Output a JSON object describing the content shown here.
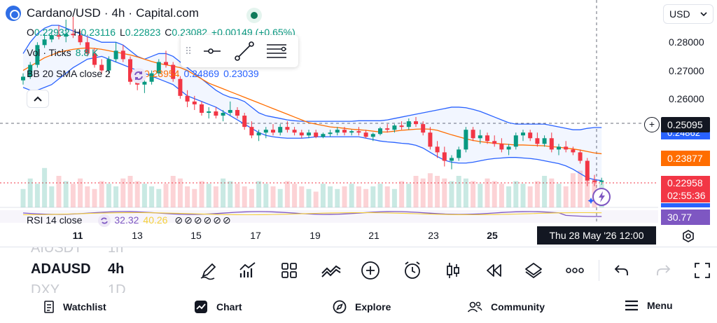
{
  "symbol": {
    "name": "Cardano/USD",
    "interval": "4h",
    "exchange": "Capital.com",
    "separator": "·"
  },
  "ohlc": {
    "o_label": "O",
    "o": "0.22932",
    "h_label": "H",
    "h": "0.23116",
    "l_label": "L",
    "l": "0.22823",
    "c_label": "C",
    "c": "0.23082",
    "change": "+0.00149 (+0.65%)"
  },
  "volume": {
    "label": "Vol · Ticks",
    "value": "8.8 K"
  },
  "bollinger": {
    "label": "BB 20 SMA close 2",
    "basis": "0.23954",
    "upper": "0.24869",
    "lower": "0.23039"
  },
  "rsi": {
    "label": "RSI 14 close",
    "value1": "32.32",
    "value2": "40.26"
  },
  "currency": {
    "selected": "USD"
  },
  "price_axis": {
    "ticks": [
      "0.28000",
      "0.27000",
      "0.26000"
    ],
    "crosshair_price": "0.25095",
    "bb_upper_tag": "0.24862",
    "bb_basis_tag": "0.23877",
    "last_price": "0.22958",
    "countdown": "02:55:36",
    "rsi_tag": "30.77"
  },
  "time_axis": {
    "labels": [
      {
        "text": "11",
        "bold": true
      },
      {
        "text": "13",
        "bold": false
      },
      {
        "text": "15",
        "bold": false
      },
      {
        "text": "17",
        "bold": false
      },
      {
        "text": "19",
        "bold": false
      },
      {
        "text": "21",
        "bold": false
      },
      {
        "text": "23",
        "bold": false
      },
      {
        "text": "25",
        "bold": true
      }
    ],
    "crosshair_time": "Thu 28 May '26   12:00"
  },
  "symbol_picker": {
    "prev": {
      "symbol": "AIUSDT",
      "interval": "1h"
    },
    "current": {
      "symbol": "ADAUSD",
      "interval": "4h"
    },
    "next": {
      "symbol": "DXY",
      "interval": "1D"
    }
  },
  "toolbar_icons": [
    "brush-icon",
    "indicators-icon",
    "templates-icon",
    "compare-icon",
    "add-icon",
    "alert-clock-icon",
    "candles-icon",
    "replay-icon",
    "layers-icon",
    "more-icon",
    "undo-icon",
    "redo-icon",
    "fullscreen-icon"
  ],
  "bottom_nav": {
    "watchlist": "Watchlist",
    "chart": "Chart",
    "explore": "Explore",
    "community": "Community",
    "menu": "Menu"
  },
  "colors": {
    "up": "#089981",
    "down": "#f23645",
    "bb_basis": "#ff6d00",
    "bb_band": "#2962ff",
    "rsi": "#7e57c2",
    "accent_dark": "#131722"
  },
  "chart_data": {
    "type": "candlestick",
    "price_range": [
      0.2195,
      0.2895
    ],
    "candles": [
      [
        0.2655,
        0.268,
        0.264,
        0.2668
      ],
      [
        0.2668,
        0.272,
        0.266,
        0.271
      ],
      [
        0.271,
        0.279,
        0.27,
        0.278
      ],
      [
        0.278,
        0.282,
        0.277,
        0.28
      ],
      [
        0.28,
        0.283,
        0.279,
        0.2815
      ],
      [
        0.2815,
        0.285,
        0.28,
        0.281
      ],
      [
        0.281,
        0.287,
        0.279,
        0.282
      ],
      [
        0.282,
        0.288,
        0.2805,
        0.2815
      ],
      [
        0.2815,
        0.283,
        0.278,
        0.279
      ],
      [
        0.279,
        0.281,
        0.274,
        0.275
      ],
      [
        0.275,
        0.277,
        0.27,
        0.271
      ],
      [
        0.271,
        0.273,
        0.268,
        0.269
      ],
      [
        0.269,
        0.274,
        0.268,
        0.273
      ],
      [
        0.273,
        0.279,
        0.272,
        0.276
      ],
      [
        0.276,
        0.278,
        0.272,
        0.273
      ],
      [
        0.273,
        0.274,
        0.264,
        0.265
      ],
      [
        0.265,
        0.267,
        0.262,
        0.264
      ],
      [
        0.264,
        0.266,
        0.261,
        0.265
      ],
      [
        0.265,
        0.269,
        0.264,
        0.268
      ],
      [
        0.268,
        0.273,
        0.267,
        0.272
      ],
      [
        0.272,
        0.276,
        0.27,
        0.271
      ],
      [
        0.271,
        0.272,
        0.265,
        0.266
      ],
      [
        0.266,
        0.267,
        0.259,
        0.26
      ],
      [
        0.26,
        0.262,
        0.256,
        0.258
      ],
      [
        0.258,
        0.26,
        0.255,
        0.257
      ],
      [
        0.257,
        0.258,
        0.253,
        0.254
      ],
      [
        0.254,
        0.256,
        0.252,
        0.2545
      ],
      [
        0.2545,
        0.256,
        0.252,
        0.253
      ],
      [
        0.253,
        0.255,
        0.251,
        0.254
      ],
      [
        0.254,
        0.258,
        0.253,
        0.255
      ],
      [
        0.255,
        0.256,
        0.252,
        0.253
      ],
      [
        0.253,
        0.254,
        0.248,
        0.249
      ],
      [
        0.249,
        0.251,
        0.245,
        0.246
      ],
      [
        0.246,
        0.248,
        0.244,
        0.247
      ],
      [
        0.247,
        0.249,
        0.245,
        0.248
      ],
      [
        0.248,
        0.25,
        0.246,
        0.247
      ],
      [
        0.247,
        0.25,
        0.246,
        0.249
      ],
      [
        0.249,
        0.251,
        0.247,
        0.248
      ],
      [
        0.248,
        0.249,
        0.246,
        0.247
      ],
      [
        0.247,
        0.248,
        0.245,
        0.246
      ],
      [
        0.246,
        0.248,
        0.245,
        0.247
      ],
      [
        0.247,
        0.248,
        0.245,
        0.2455
      ],
      [
        0.2455,
        0.247,
        0.245,
        0.2465
      ],
      [
        0.2465,
        0.248,
        0.2455,
        0.247
      ],
      [
        0.247,
        0.249,
        0.246,
        0.248
      ],
      [
        0.248,
        0.249,
        0.246,
        0.247
      ],
      [
        0.247,
        0.248,
        0.246,
        0.2475
      ],
      [
        0.2475,
        0.249,
        0.246,
        0.247
      ],
      [
        0.247,
        0.248,
        0.245,
        0.2455
      ],
      [
        0.2455,
        0.247,
        0.244,
        0.2465
      ],
      [
        0.2465,
        0.249,
        0.246,
        0.2485
      ],
      [
        0.2485,
        0.25,
        0.247,
        0.248
      ],
      [
        0.248,
        0.25,
        0.247,
        0.2495
      ],
      [
        0.2495,
        0.251,
        0.248,
        0.249
      ],
      [
        0.249,
        0.252,
        0.248,
        0.251
      ],
      [
        0.251,
        0.2525,
        0.249,
        0.25
      ],
      [
        0.25,
        0.251,
        0.246,
        0.247
      ],
      [
        0.247,
        0.249,
        0.241,
        0.242
      ],
      [
        0.242,
        0.244,
        0.238,
        0.24
      ],
      [
        0.24,
        0.242,
        0.235,
        0.237
      ],
      [
        0.237,
        0.239,
        0.234,
        0.238
      ],
      [
        0.238,
        0.242,
        0.237,
        0.241
      ],
      [
        0.241,
        0.249,
        0.24,
        0.248
      ],
      [
        0.248,
        0.249,
        0.244,
        0.245
      ],
      [
        0.245,
        0.248,
        0.243,
        0.246
      ],
      [
        0.246,
        0.247,
        0.243,
        0.244
      ],
      [
        0.244,
        0.246,
        0.242,
        0.243
      ],
      [
        0.243,
        0.245,
        0.24,
        0.241
      ],
      [
        0.241,
        0.243,
        0.239,
        0.242
      ],
      [
        0.242,
        0.247,
        0.241,
        0.246
      ],
      [
        0.246,
        0.248,
        0.244,
        0.247
      ],
      [
        0.247,
        0.248,
        0.244,
        0.245
      ],
      [
        0.245,
        0.247,
        0.242,
        0.243
      ],
      [
        0.243,
        0.246,
        0.242,
        0.245
      ],
      [
        0.245,
        0.247,
        0.24,
        0.241
      ],
      [
        0.241,
        0.243,
        0.239,
        0.242
      ],
      [
        0.242,
        0.244,
        0.24,
        0.241
      ],
      [
        0.241,
        0.242,
        0.239,
        0.24
      ],
      [
        0.24,
        0.241,
        0.236,
        0.237
      ],
      [
        0.237,
        0.238,
        0.228,
        0.23
      ],
      [
        0.23,
        0.232,
        0.228,
        0.2295
      ],
      [
        0.2295,
        0.231,
        0.2285,
        0.23
      ]
    ],
    "bb_upper": [
      0.275,
      0.279,
      0.282,
      0.284,
      0.285,
      0.285,
      0.284,
      0.283,
      0.282,
      0.281,
      0.28,
      0.279,
      0.279,
      0.279,
      0.278,
      0.276,
      0.274,
      0.273,
      0.274,
      0.275,
      0.275,
      0.274,
      0.272,
      0.27,
      0.268,
      0.266,
      0.264,
      0.262,
      0.2605,
      0.2595,
      0.259,
      0.258,
      0.256,
      0.254,
      0.253,
      0.2525,
      0.252,
      0.2515,
      0.2512,
      0.251,
      0.251,
      0.251,
      0.251,
      0.251,
      0.251,
      0.251,
      0.251,
      0.2512,
      0.2512,
      0.2512,
      0.2512,
      0.2515,
      0.252,
      0.2525,
      0.253,
      0.2535,
      0.254,
      0.2545,
      0.255,
      0.2555,
      0.256,
      0.256,
      0.2558,
      0.2552,
      0.2545,
      0.2535,
      0.2525,
      0.2515,
      0.2505,
      0.25,
      0.25,
      0.25,
      0.25,
      0.25,
      0.2495,
      0.249,
      0.2485,
      0.248,
      0.248,
      0.2485,
      0.2488,
      0.2488
    ],
    "bb_basis": [
      0.269,
      0.2705,
      0.272,
      0.2735,
      0.2745,
      0.2755,
      0.276,
      0.2765,
      0.2768,
      0.277,
      0.2768,
      0.2765,
      0.276,
      0.2755,
      0.275,
      0.2745,
      0.2738,
      0.273,
      0.2722,
      0.2715,
      0.271,
      0.2705,
      0.27,
      0.269,
      0.2675,
      0.266,
      0.2645,
      0.2635,
      0.2625,
      0.2615,
      0.2605,
      0.2595,
      0.2585,
      0.2575,
      0.2565,
      0.2555,
      0.2545,
      0.2535,
      0.2525,
      0.2515,
      0.2505,
      0.25,
      0.2495,
      0.249,
      0.2488,
      0.2485,
      0.2482,
      0.248,
      0.2478,
      0.2475,
      0.2472,
      0.2472,
      0.2475,
      0.2478,
      0.248,
      0.2482,
      0.2483,
      0.2482,
      0.2478,
      0.247,
      0.2462,
      0.2455,
      0.2448,
      0.2442,
      0.2438,
      0.2435,
      0.2432,
      0.243,
      0.2428,
      0.2426,
      0.2426,
      0.2425,
      0.2424,
      0.2423,
      0.242,
      0.2418,
      0.2415,
      0.2412,
      0.2408,
      0.2403,
      0.2398,
      0.2395
    ],
    "bb_lower": [
      0.263,
      0.262,
      0.262,
      0.263,
      0.264,
      0.266,
      0.268,
      0.27,
      0.2715,
      0.273,
      0.2735,
      0.274,
      0.273,
      0.272,
      0.271,
      0.27,
      0.269,
      0.268,
      0.267,
      0.266,
      0.265,
      0.264,
      0.262,
      0.26,
      0.259,
      0.258,
      0.257,
      0.256,
      0.2545,
      0.253,
      0.2515,
      0.25,
      0.2485,
      0.247,
      0.246,
      0.2455,
      0.2452,
      0.245,
      0.245,
      0.245,
      0.2452,
      0.2455,
      0.2455,
      0.2455,
      0.2455,
      0.2455,
      0.2455,
      0.2455,
      0.245,
      0.2445,
      0.244,
      0.2437,
      0.2435,
      0.2432,
      0.243,
      0.2425,
      0.2415,
      0.24,
      0.2385,
      0.2372,
      0.2365,
      0.2362,
      0.2362,
      0.2365,
      0.237,
      0.2375,
      0.2378,
      0.238,
      0.2382,
      0.2382,
      0.238,
      0.2378,
      0.2375,
      0.237,
      0.2365,
      0.236,
      0.2352,
      0.234,
      0.2325,
      0.231,
      0.2303,
      0.23
    ],
    "volume": [
      0.35,
      0.55,
      0.45,
      0.75,
      0.4,
      0.6,
      0.5,
      0.45,
      0.55,
      0.4,
      0.35,
      0.5,
      0.45,
      0.4,
      0.55,
      0.6,
      0.5,
      0.45,
      0.4,
      0.35,
      0.45,
      0.6,
      0.55,
      0.4,
      0.35,
      0.5,
      0.45,
      0.4,
      0.55,
      0.5,
      0.45,
      0.4,
      0.35,
      0.5,
      0.45,
      0.4,
      0.35,
      0.5,
      0.45,
      0.4,
      0.35,
      0.3,
      0.45,
      0.4,
      0.35,
      0.4,
      0.45,
      0.4,
      0.35,
      0.4,
      0.45,
      0.4,
      0.35,
      0.5,
      0.45,
      0.6,
      0.55,
      0.65,
      0.6,
      0.55,
      0.5,
      0.6,
      0.55,
      0.5,
      0.45,
      0.55,
      0.5,
      0.45,
      0.4,
      0.5,
      0.45,
      0.4,
      0.5,
      0.6,
      0.55,
      0.45,
      0.4,
      0.65,
      0.7,
      0.6,
      0.55,
      0.45
    ]
  }
}
